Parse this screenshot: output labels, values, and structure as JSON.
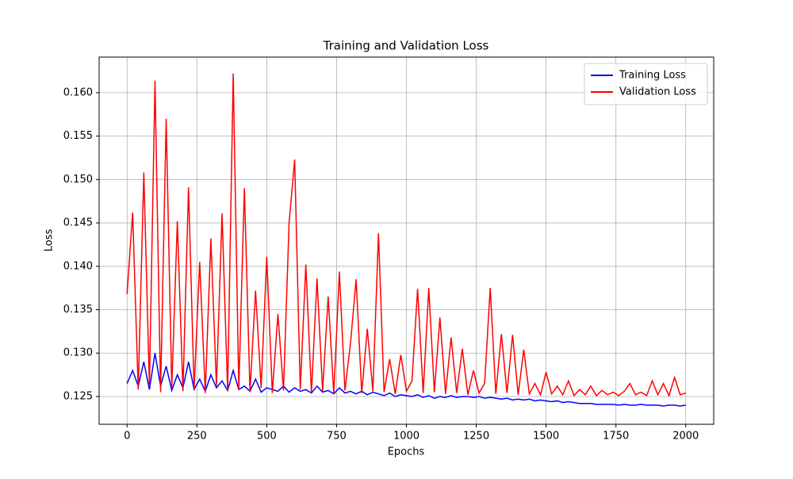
{
  "chart_data": {
    "type": "line",
    "title": "Training and Validation Loss",
    "xlabel": "Epochs",
    "ylabel": "Loss",
    "x": [
      0,
      20,
      40,
      60,
      80,
      100,
      120,
      140,
      160,
      180,
      200,
      220,
      240,
      260,
      280,
      300,
      320,
      340,
      360,
      380,
      400,
      420,
      440,
      460,
      480,
      500,
      520,
      540,
      560,
      580,
      600,
      620,
      640,
      660,
      680,
      700,
      720,
      740,
      760,
      780,
      800,
      820,
      840,
      860,
      880,
      900,
      920,
      940,
      960,
      980,
      1000,
      1020,
      1040,
      1060,
      1080,
      1100,
      1120,
      1140,
      1160,
      1180,
      1200,
      1220,
      1240,
      1260,
      1280,
      1300,
      1320,
      1340,
      1360,
      1380,
      1400,
      1420,
      1440,
      1460,
      1480,
      1500,
      1520,
      1540,
      1560,
      1580,
      1600,
      1620,
      1640,
      1660,
      1680,
      1700,
      1720,
      1740,
      1760,
      1780,
      1800,
      1820,
      1840,
      1860,
      1880,
      1900,
      1920,
      1940,
      1960,
      1980,
      2000
    ],
    "series": [
      {
        "name": "Training Loss",
        "color": "#0000ff",
        "values": [
          0.1265,
          0.128,
          0.1262,
          0.129,
          0.1258,
          0.13,
          0.1262,
          0.1285,
          0.1257,
          0.1275,
          0.126,
          0.129,
          0.1258,
          0.127,
          0.1256,
          0.1275,
          0.126,
          0.1268,
          0.1257,
          0.128,
          0.1258,
          0.1262,
          0.1256,
          0.127,
          0.1255,
          0.126,
          0.1258,
          0.1256,
          0.1262,
          0.1255,
          0.126,
          0.1256,
          0.1258,
          0.1254,
          0.1262,
          0.1255,
          0.1257,
          0.1253,
          0.126,
          0.1254,
          0.1256,
          0.1253,
          0.1256,
          0.1252,
          0.1255,
          0.1253,
          0.1251,
          0.1254,
          0.125,
          0.1252,
          0.1251,
          0.125,
          0.1252,
          0.1249,
          0.1251,
          0.1248,
          0.125,
          0.1249,
          0.1251,
          0.1249,
          0.125,
          0.125,
          0.1249,
          0.125,
          0.1248,
          0.1249,
          0.1248,
          0.1247,
          0.1248,
          0.1246,
          0.1247,
          0.1246,
          0.1247,
          0.1245,
          0.1246,
          0.1245,
          0.1244,
          0.1245,
          0.1243,
          0.1244,
          0.1243,
          0.1242,
          0.1242,
          0.1242,
          0.1241,
          0.1241,
          0.1241,
          0.1241,
          0.124,
          0.1241,
          0.124,
          0.124,
          0.1241,
          0.124,
          0.124,
          0.124,
          0.1239,
          0.124,
          0.124,
          0.1239,
          0.124
        ]
      },
      {
        "name": "Validation Loss",
        "color": "#ff0000",
        "values": [
          0.1368,
          0.1462,
          0.1258,
          0.1508,
          0.1262,
          0.1614,
          0.1255,
          0.157,
          0.126,
          0.1452,
          0.1256,
          0.1491,
          0.1258,
          0.1405,
          0.1254,
          0.1432,
          0.1262,
          0.1461,
          0.1256,
          0.1622,
          0.1258,
          0.149,
          0.1255,
          0.1372,
          0.126,
          0.1411,
          0.1254,
          0.1345,
          0.1257,
          0.145,
          0.1523,
          0.1258,
          0.1402,
          0.1254,
          0.1386,
          0.1256,
          0.1365,
          0.1253,
          0.1394,
          0.1257,
          0.1312,
          0.1385,
          0.1254,
          0.1328,
          0.1256,
          0.1438,
          0.1255,
          0.1293,
          0.1253,
          0.1298,
          0.1256,
          0.1268,
          0.1374,
          0.1254,
          0.1375,
          0.1255,
          0.1341,
          0.1253,
          0.1318,
          0.1254,
          0.1305,
          0.1252,
          0.128,
          0.1254,
          0.1265,
          0.1375,
          0.1253,
          0.1322,
          0.1254,
          0.1321,
          0.1252,
          0.1304,
          0.1253,
          0.1265,
          0.1252,
          0.1278,
          0.1253,
          0.1262,
          0.1252,
          0.1268,
          0.1251,
          0.1258,
          0.1252,
          0.1262,
          0.1251,
          0.1257,
          0.1252,
          0.1255,
          0.1251,
          0.1256,
          0.1265,
          0.1252,
          0.1255,
          0.1251,
          0.1268,
          0.1252,
          0.1265,
          0.1251,
          0.1272,
          0.1252,
          0.1254
        ]
      }
    ],
    "xlim": [
      -100,
      2100
    ],
    "xticks": [
      0,
      250,
      500,
      750,
      1000,
      1250,
      1500,
      1750,
      2000
    ],
    "ylim": [
      0.1218,
      0.1641
    ],
    "yticks": [
      0.125,
      {
        "value": 0.13,
        "label": "0.130"
      },
      0.135,
      {
        "value": 0.14,
        "label": "0.140"
      },
      0.145,
      {
        "value": 0.15,
        "label": "0.150"
      },
      0.155,
      {
        "value": 0.16,
        "label": "0.160"
      }
    ],
    "grid": true,
    "legend": "upper right"
  }
}
